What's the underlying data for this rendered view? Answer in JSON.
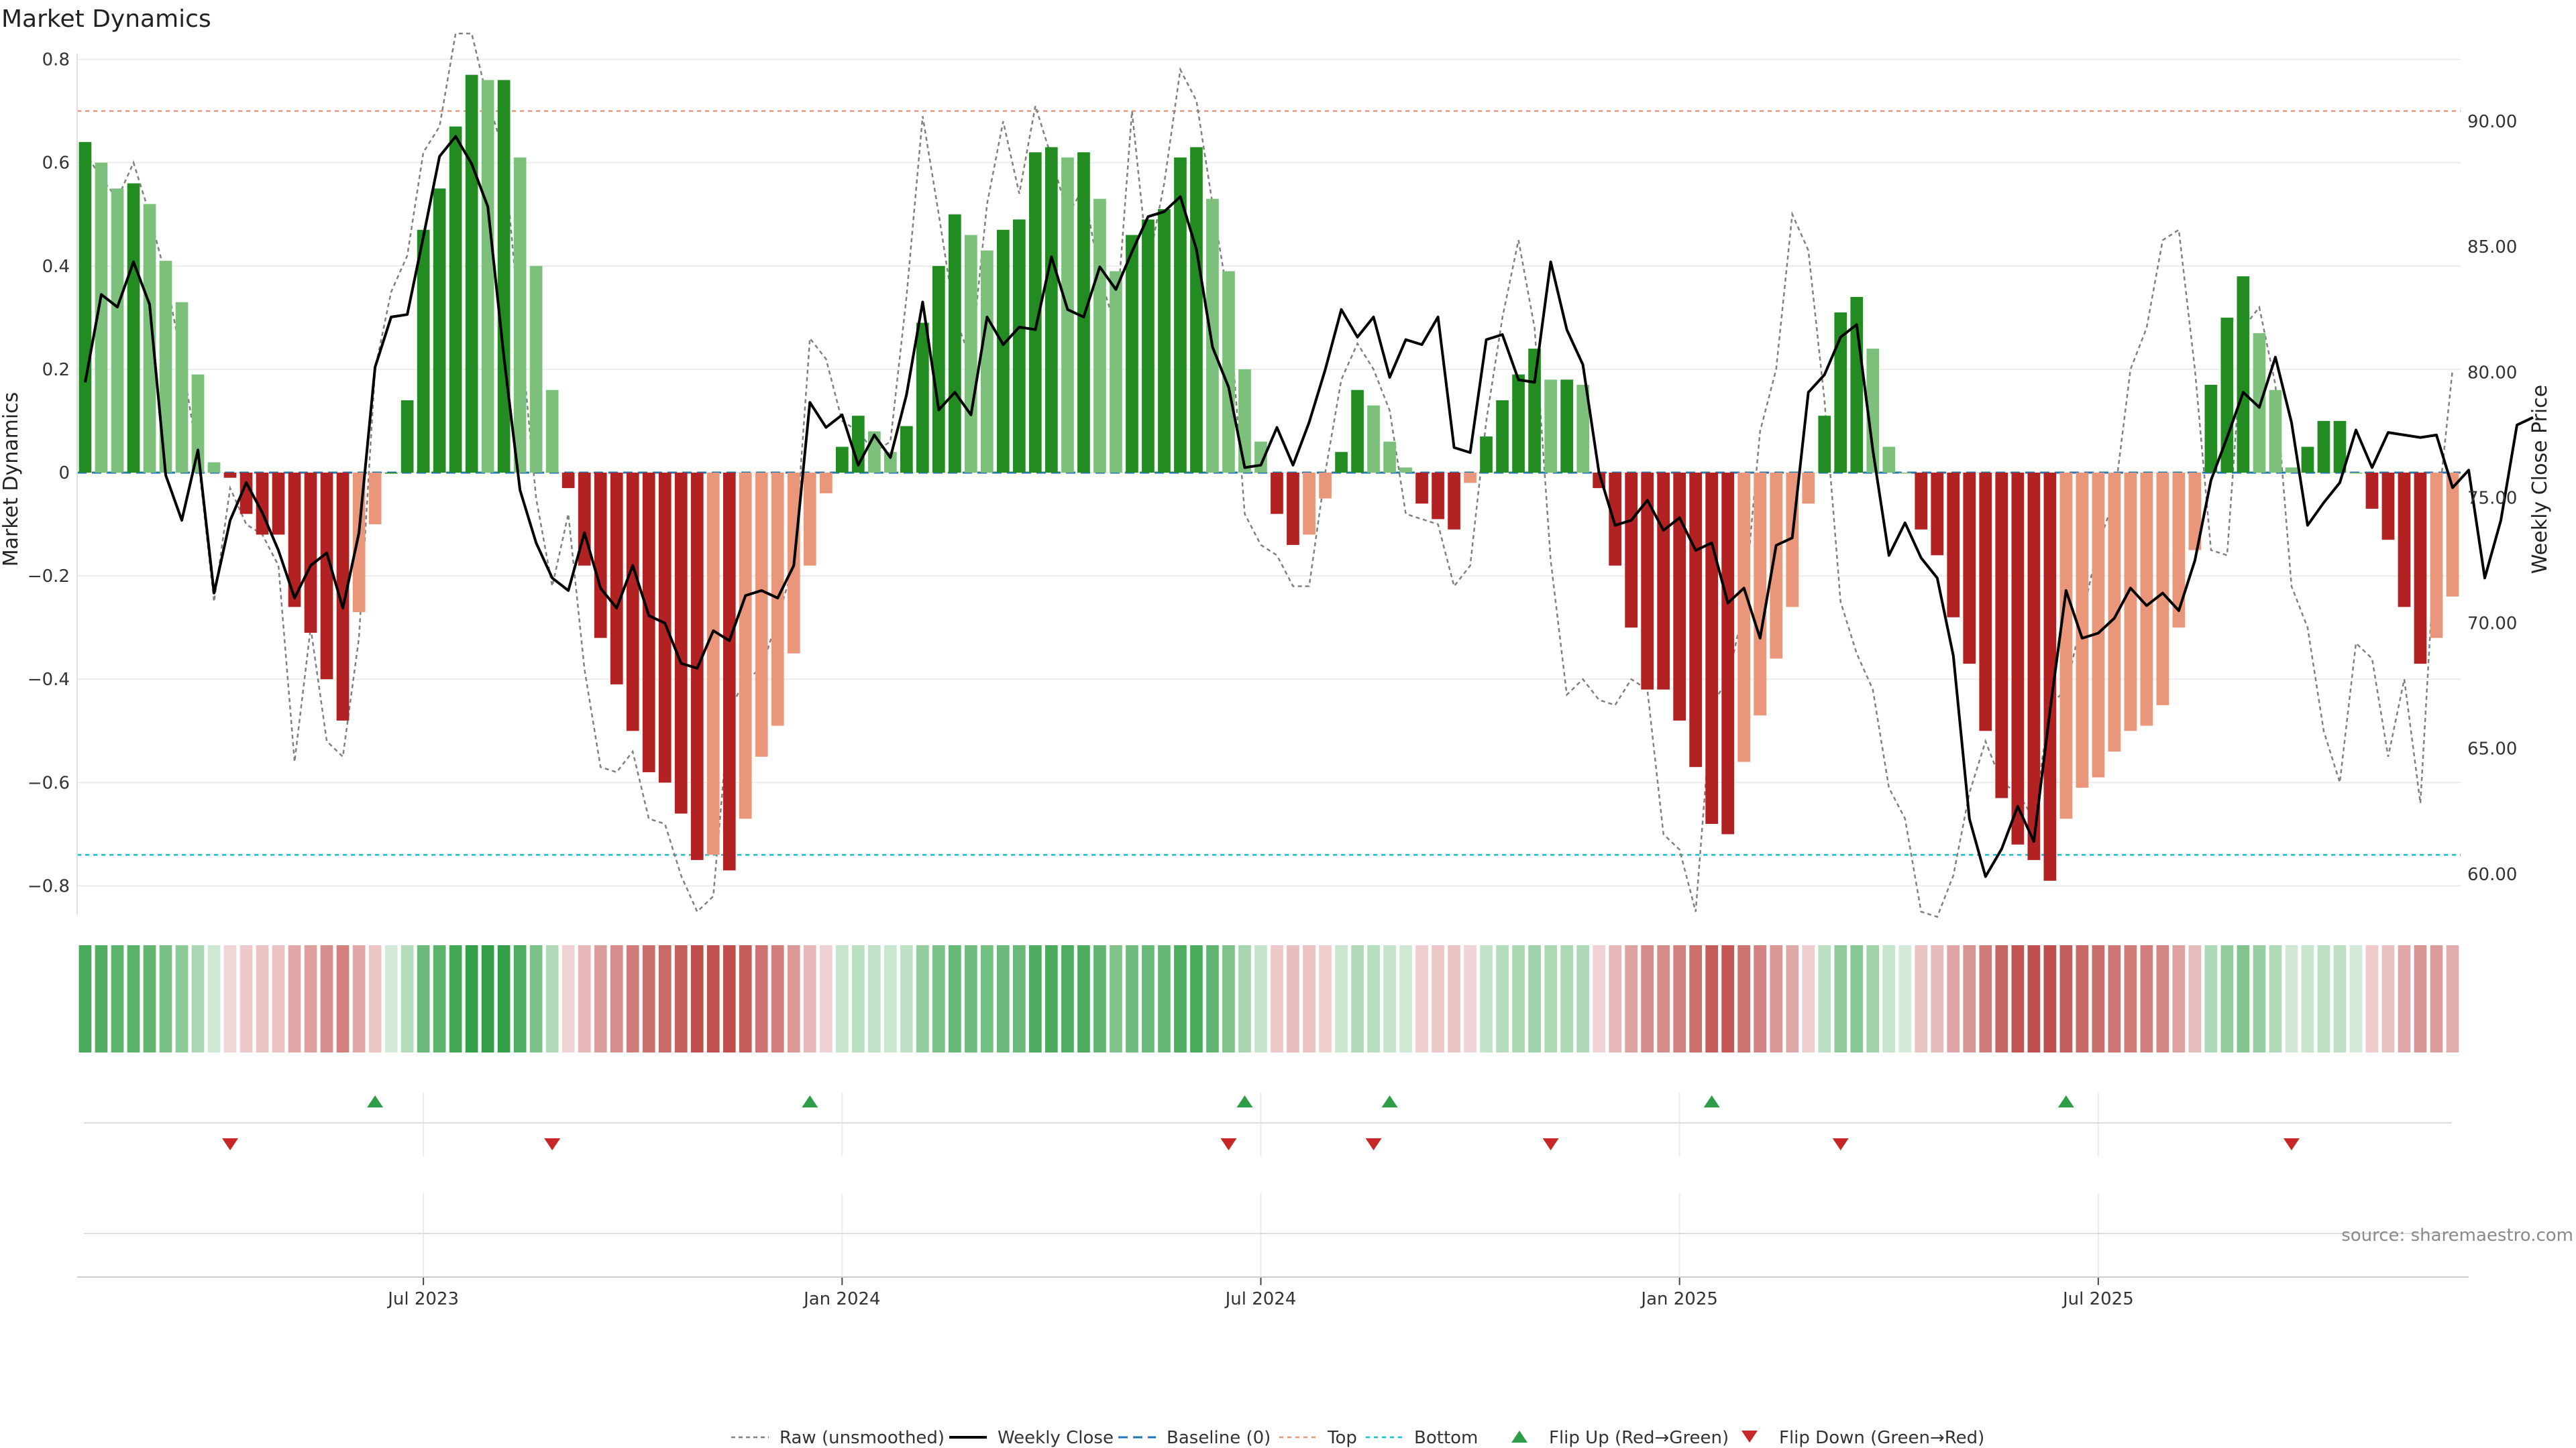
{
  "chart_data": {
    "type": "bar",
    "title": "Market Dynamics",
    "ylabel": "Market Dynamics",
    "y2label": "Weekly Close Price",
    "source": "source: sharemaestro.com",
    "ylim": [
      -0.85,
      0.85
    ],
    "y2lim": [
      58.5,
      93.5
    ],
    "yticks": [
      "0.8",
      "0.6",
      "0.4",
      "0.2",
      "0",
      "−0.2",
      "−0.4",
      "−0.6",
      "−0.8"
    ],
    "y2ticks": [
      "90.00",
      "85.00",
      "80.00",
      "75.00",
      "70.00",
      "65.00",
      "60.00"
    ],
    "x_ticks": [
      "Jul 2023",
      "Jan 2024",
      "Jul 2024",
      "Jan 2025",
      "Jul 2025"
    ],
    "x_tick_week_index": [
      21,
      47,
      73,
      99,
      125
    ],
    "top_level": 0.7,
    "bottom_level": -0.74,
    "baseline": 0,
    "grid": true,
    "legend_position": "bottom-center",
    "colors": {
      "strong_up": "#228b22",
      "weak_up": "#7cc07c",
      "strong_down": "#b22222",
      "weak_down": "#e9967a",
      "close": "#000000",
      "raw": "#808080",
      "baseline": "#1f77b4",
      "top": "#e9967a",
      "bottom": "#17becf",
      "flip_up": "#2e9d48",
      "flip_down": "#c62828"
    },
    "legend": [
      {
        "label": "Raw (unsmoothed)",
        "style": "raw"
      },
      {
        "label": "Weekly Close",
        "style": "close"
      },
      {
        "label": "Baseline (0)",
        "style": "baseline"
      },
      {
        "label": "Top",
        "style": "top"
      },
      {
        "label": "Bottom",
        "style": "bottom"
      },
      {
        "label": "Flip Up (Red→Green)",
        "style": "flip_up"
      },
      {
        "label": "Flip Down (Green→Red)",
        "style": "flip_down"
      }
    ],
    "market_dynamics": [
      0.64,
      0.6,
      0.55,
      0.56,
      0.52,
      0.41,
      0.33,
      0.19,
      0.02,
      -0.01,
      -0.08,
      -0.12,
      -0.12,
      -0.26,
      -0.31,
      -0.4,
      -0.48,
      -0.27,
      -0.1,
      0.0,
      0.14,
      0.47,
      0.55,
      0.67,
      0.77,
      0.76,
      0.76,
      0.61,
      0.4,
      0.16,
      -0.03,
      -0.18,
      -0.32,
      -0.41,
      -0.5,
      -0.58,
      -0.6,
      -0.66,
      -0.75,
      -0.74,
      -0.77,
      -0.67,
      -0.55,
      -0.49,
      -0.35,
      -0.18,
      -0.04,
      0.05,
      0.11,
      0.08,
      0.04,
      0.09,
      0.29,
      0.4,
      0.5,
      0.46,
      0.43,
      0.47,
      0.49,
      0.62,
      0.63,
      0.61,
      0.62,
      0.53,
      0.39,
      0.46,
      0.49,
      0.51,
      0.61,
      0.63,
      0.53,
      0.39,
      0.2,
      0.06,
      -0.08,
      -0.14,
      -0.12,
      -0.05,
      0.04,
      0.16,
      0.13,
      0.06,
      0.01,
      -0.06,
      -0.09,
      -0.11,
      -0.02,
      0.07,
      0.14,
      0.19,
      0.24,
      0.18,
      0.18,
      0.17,
      -0.03,
      -0.18,
      -0.3,
      -0.42,
      -0.42,
      -0.48,
      -0.57,
      -0.68,
      -0.7,
      -0.56,
      -0.47,
      -0.36,
      -0.26,
      -0.06,
      0.11,
      0.31,
      0.34,
      0.24,
      0.05,
      0.0,
      -0.11,
      -0.16,
      -0.28,
      -0.37,
      -0.5,
      -0.63,
      -0.72,
      -0.75,
      -0.79,
      -0.67,
      -0.61,
      -0.59,
      -0.54,
      -0.5,
      -0.49,
      -0.45,
      -0.3,
      -0.15,
      0.17,
      0.3,
      0.38,
      0.27,
      0.16,
      0.01,
      0.05,
      0.1,
      0.1,
      0.0,
      -0.07,
      -0.13,
      -0.26,
      -0.37,
      -0.32,
      -0.24
    ],
    "raw": [
      0.62,
      0.57,
      0.53,
      0.6,
      0.5,
      0.38,
      0.22,
      0.03,
      -0.25,
      -0.03,
      -0.1,
      -0.12,
      -0.18,
      -0.56,
      -0.3,
      -0.52,
      -0.55,
      -0.32,
      0.2,
      0.35,
      0.42,
      0.62,
      0.67,
      0.85,
      0.85,
      0.72,
      0.62,
      0.28,
      -0.05,
      -0.22,
      -0.08,
      -0.38,
      -0.57,
      -0.58,
      -0.54,
      -0.67,
      -0.68,
      -0.78,
      -0.85,
      -0.82,
      -0.46,
      -0.4,
      -0.38,
      -0.28,
      -0.18,
      0.26,
      0.22,
      0.1,
      0.08,
      0.04,
      0.06,
      0.34,
      0.69,
      0.5,
      0.3,
      0.22,
      0.52,
      0.68,
      0.54,
      0.71,
      0.61,
      0.5,
      0.55,
      0.38,
      0.28,
      0.7,
      0.4,
      0.56,
      0.78,
      0.72,
      0.52,
      0.33,
      -0.08,
      -0.14,
      -0.16,
      -0.22,
      -0.22,
      0.0,
      0.18,
      0.25,
      0.2,
      0.12,
      -0.08,
      -0.09,
      -0.1,
      -0.22,
      -0.18,
      0.1,
      0.3,
      0.45,
      0.28,
      -0.17,
      -0.43,
      -0.4,
      -0.44,
      -0.45,
      -0.4,
      -0.42,
      -0.7,
      -0.73,
      -0.85,
      -0.45,
      -0.4,
      -0.26,
      0.08,
      0.2,
      0.5,
      0.43,
      0.14,
      -0.25,
      -0.35,
      -0.42,
      -0.61,
      -0.67,
      -0.85,
      -0.86,
      -0.78,
      -0.62,
      -0.52,
      -0.6,
      -0.62,
      -0.67,
      -0.45,
      -0.42,
      -0.28,
      -0.14,
      -0.05,
      0.2,
      0.28,
      0.45,
      0.47,
      0.2,
      -0.15,
      -0.16,
      0.28,
      0.32,
      0.17,
      -0.22,
      -0.3,
      -0.5,
      -0.6,
      -0.33,
      -0.36,
      -0.55,
      -0.4,
      -0.64,
      -0.1,
      0.2
    ],
    "weekly_close": [
      79.6,
      83.1,
      82.6,
      84.4,
      82.7,
      75.9,
      74.1,
      76.9,
      71.2,
      74.1,
      75.6,
      74.4,
      72.9,
      71.0,
      72.3,
      72.8,
      70.6,
      73.6,
      80.2,
      82.2,
      82.3,
      85.4,
      88.6,
      89.4,
      88.3,
      86.6,
      80.6,
      75.3,
      73.2,
      71.8,
      71.3,
      73.6,
      71.4,
      70.6,
      72.3,
      70.3,
      70.0,
      68.4,
      68.2,
      69.7,
      69.3,
      71.1,
      71.3,
      71.0,
      72.3,
      78.8,
      77.8,
      78.3,
      76.3,
      77.5,
      76.6,
      79.1,
      82.8,
      78.5,
      79.2,
      78.3,
      82.2,
      81.1,
      81.8,
      81.7,
      84.6,
      82.5,
      82.2,
      84.2,
      83.3,
      84.8,
      86.2,
      86.4,
      87.0,
      84.9,
      81.0,
      79.4,
      76.2,
      76.3,
      77.8,
      76.3,
      78.0,
      80.1,
      82.5,
      81.4,
      82.2,
      79.8,
      81.3,
      81.1,
      82.2,
      77.0,
      76.8,
      81.3,
      81.5,
      79.7,
      79.6,
      84.4,
      81.7,
      80.3,
      76.0,
      73.9,
      74.1,
      74.9,
      73.7,
      74.2,
      72.9,
      73.2,
      70.8,
      71.4,
      69.4,
      73.1,
      73.4,
      79.2,
      79.9,
      81.4,
      81.9,
      76.9,
      72.7,
      74.0,
      72.6,
      71.8,
      68.7,
      62.2,
      59.9,
      61.0,
      62.7,
      61.3,
      66.5,
      71.3,
      69.4,
      69.6,
      70.2,
      71.4,
      70.7,
      71.2,
      70.5,
      72.5,
      75.7,
      77.4,
      79.2,
      78.6,
      80.6,
      78.0,
      73.9,
      74.8,
      75.6,
      77.7,
      76.2,
      77.6,
      77.5,
      77.4,
      77.5,
      75.4,
      76.1,
      71.8,
      74.1,
      77.9,
      78.2
    ],
    "flip_up_week_index": [
      18,
      45,
      72,
      81,
      101,
      123
    ],
    "flip_down_week_index": [
      9,
      29,
      71,
      80,
      91,
      109,
      137
    ]
  }
}
